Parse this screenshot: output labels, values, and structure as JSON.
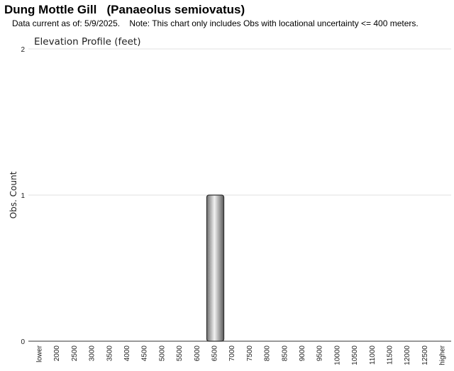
{
  "header": {
    "title": "Dung Mottle Gill   (Panaeolus semiovatus)",
    "subtitle": "Data current as of: 5/9/2025.    Note: This chart only includes Obs with locational uncertainty <= 400 meters."
  },
  "chart_data": {
    "type": "bar",
    "title": "Elevation Profile (feet)",
    "xlabel": "",
    "ylabel": "Obs. Count",
    "ylim": [
      0,
      2
    ],
    "yticks": [
      "0",
      "1",
      "2"
    ],
    "grid": true,
    "categories": [
      "lower",
      "2000",
      "2500",
      "3000",
      "3500",
      "4000",
      "4500",
      "5000",
      "5500",
      "6000",
      "6500",
      "7000",
      "7500",
      "8000",
      "8500",
      "9000",
      "9500",
      "10000",
      "10500",
      "11000",
      "11500",
      "12000",
      "12500",
      "higher"
    ],
    "values": [
      0,
      0,
      0,
      0,
      0,
      0,
      0,
      0,
      0,
      0,
      1,
      0,
      0,
      0,
      0,
      0,
      0,
      0,
      0,
      0,
      0,
      0,
      0,
      0
    ],
    "bar_color": "#9a9a9a"
  }
}
